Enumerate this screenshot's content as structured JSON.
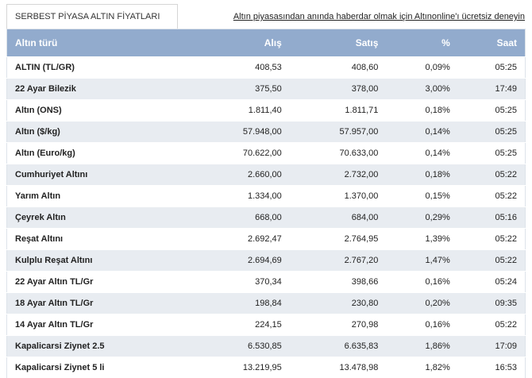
{
  "header": {
    "tab": "SERBEST PİYASA ALTIN FİYATLARI",
    "link": "Altın piyasasından anında haberdar olmak için Altınonline'ı ücretsiz deneyin"
  },
  "table": {
    "columns": [
      "Altın türü",
      "Alış",
      "Satış",
      "%",
      "Saat"
    ],
    "rows": [
      [
        "ALTIN (TL/GR)",
        "408,53",
        "408,60",
        "0,09%",
        "05:25"
      ],
      [
        "22 Ayar Bilezik",
        "375,50",
        "378,00",
        "3,00%",
        "17:49"
      ],
      [
        "Altın (ONS)",
        "1.811,40",
        "1.811,71",
        "0,18%",
        "05:25"
      ],
      [
        "Altın ($/kg)",
        "57.948,00",
        "57.957,00",
        "0,14%",
        "05:25"
      ],
      [
        "Altın (Euro/kg)",
        "70.622,00",
        "70.633,00",
        "0,14%",
        "05:25"
      ],
      [
        "Cumhuriyet Altını",
        "2.660,00",
        "2.732,00",
        "0,18%",
        "05:22"
      ],
      [
        "Yarım Altın",
        "1.334,00",
        "1.370,00",
        "0,15%",
        "05:22"
      ],
      [
        "Çeyrek Altın",
        "668,00",
        "684,00",
        "0,29%",
        "05:16"
      ],
      [
        "Reşat Altını",
        "2.692,47",
        "2.764,95",
        "1,39%",
        "05:22"
      ],
      [
        "Kulplu Reşat Altını",
        "2.694,69",
        "2.767,20",
        "1,47%",
        "05:22"
      ],
      [
        "22 Ayar Altın TL/Gr",
        "370,34",
        "398,66",
        "0,16%",
        "05:24"
      ],
      [
        "18 Ayar Altın TL/Gr",
        "198,84",
        "230,80",
        "0,20%",
        "09:35"
      ],
      [
        "14 Ayar Altın TL/Gr",
        "224,15",
        "270,98",
        "0,16%",
        "05:22"
      ],
      [
        "Kapalicarsi Ziynet 2.5",
        "6.530,85",
        "6.635,83",
        "1,86%",
        "17:09"
      ],
      [
        "Kapalicarsi Ziynet 5 li",
        "13.219,95",
        "13.478,98",
        "1,82%",
        "16:53"
      ]
    ]
  }
}
